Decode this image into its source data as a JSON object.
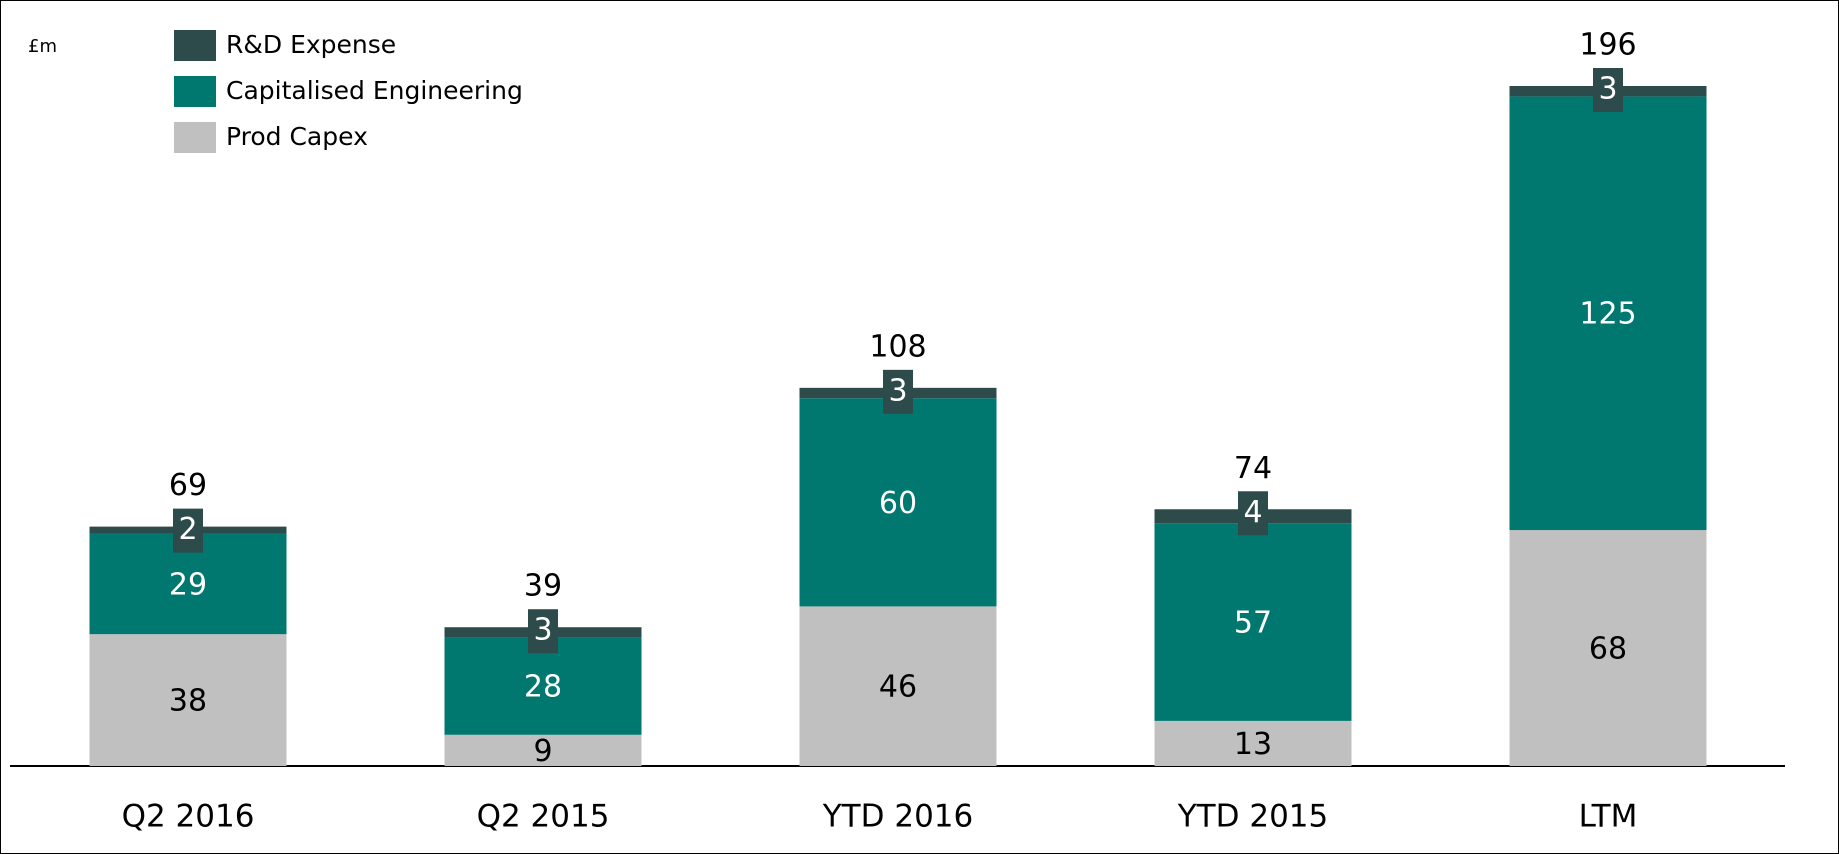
{
  "chart_data": {
    "type": "stacked_bar",
    "unit": "£m",
    "categories": [
      "Q2 2016",
      "Q2 2015",
      "YTD 2016",
      "YTD 2015",
      "LTM"
    ],
    "series": [
      {
        "name": "Prod Capex",
        "color": "#c0c0c0",
        "values": [
          38,
          9,
          46,
          13,
          68
        ]
      },
      {
        "name": "Capitalised Engineering",
        "color": "#00786f",
        "values": [
          29,
          28,
          60,
          57,
          125
        ]
      },
      {
        "name": "R&D Expense",
        "color": "#2d4b4b",
        "values": [
          2,
          3,
          3,
          4,
          3
        ]
      }
    ],
    "totals": [
      69,
      39,
      108,
      74,
      196
    ]
  }
}
